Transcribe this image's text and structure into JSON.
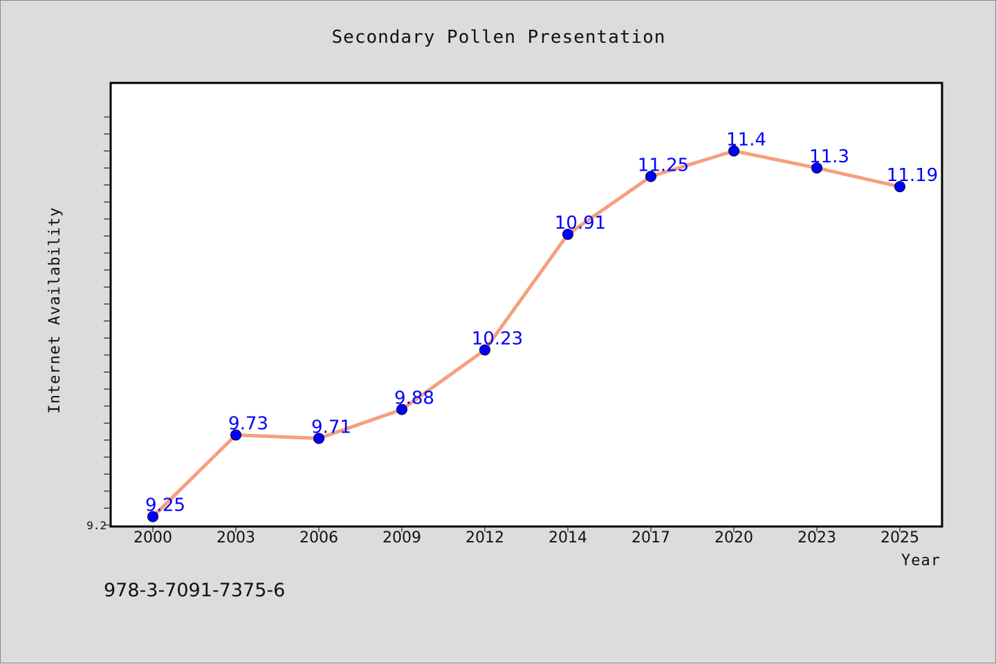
{
  "chart_data": {
    "type": "line",
    "title": "Secondary Pollen Presentation",
    "xlabel": "Year",
    "ylabel": "Internet Availability",
    "categories": [
      "2000",
      "2003",
      "2006",
      "2009",
      "2012",
      "2014",
      "2017",
      "2020",
      "2023",
      "2025"
    ],
    "series": [
      {
        "values": [
          9.25,
          9.73,
          9.71,
          9.88,
          10.23,
          10.91,
          11.25,
          11.4,
          11.3,
          11.19
        ],
        "labels": [
          "9.25",
          "9.73",
          "9.71",
          "9.88",
          "10.23",
          "10.91",
          "11.25",
          "11.4",
          "11.3",
          "11.19"
        ]
      }
    ],
    "ylim": [
      9.2,
      11.8
    ],
    "yticks": [
      {
        "value": 9.2,
        "label": "9.2"
      }
    ],
    "grid": false,
    "line_color": "#f4a07e",
    "marker_color": "#0000ff",
    "label_color": "#0000ff"
  },
  "footer": {
    "isbn": "978-3-7091-7375-6"
  }
}
